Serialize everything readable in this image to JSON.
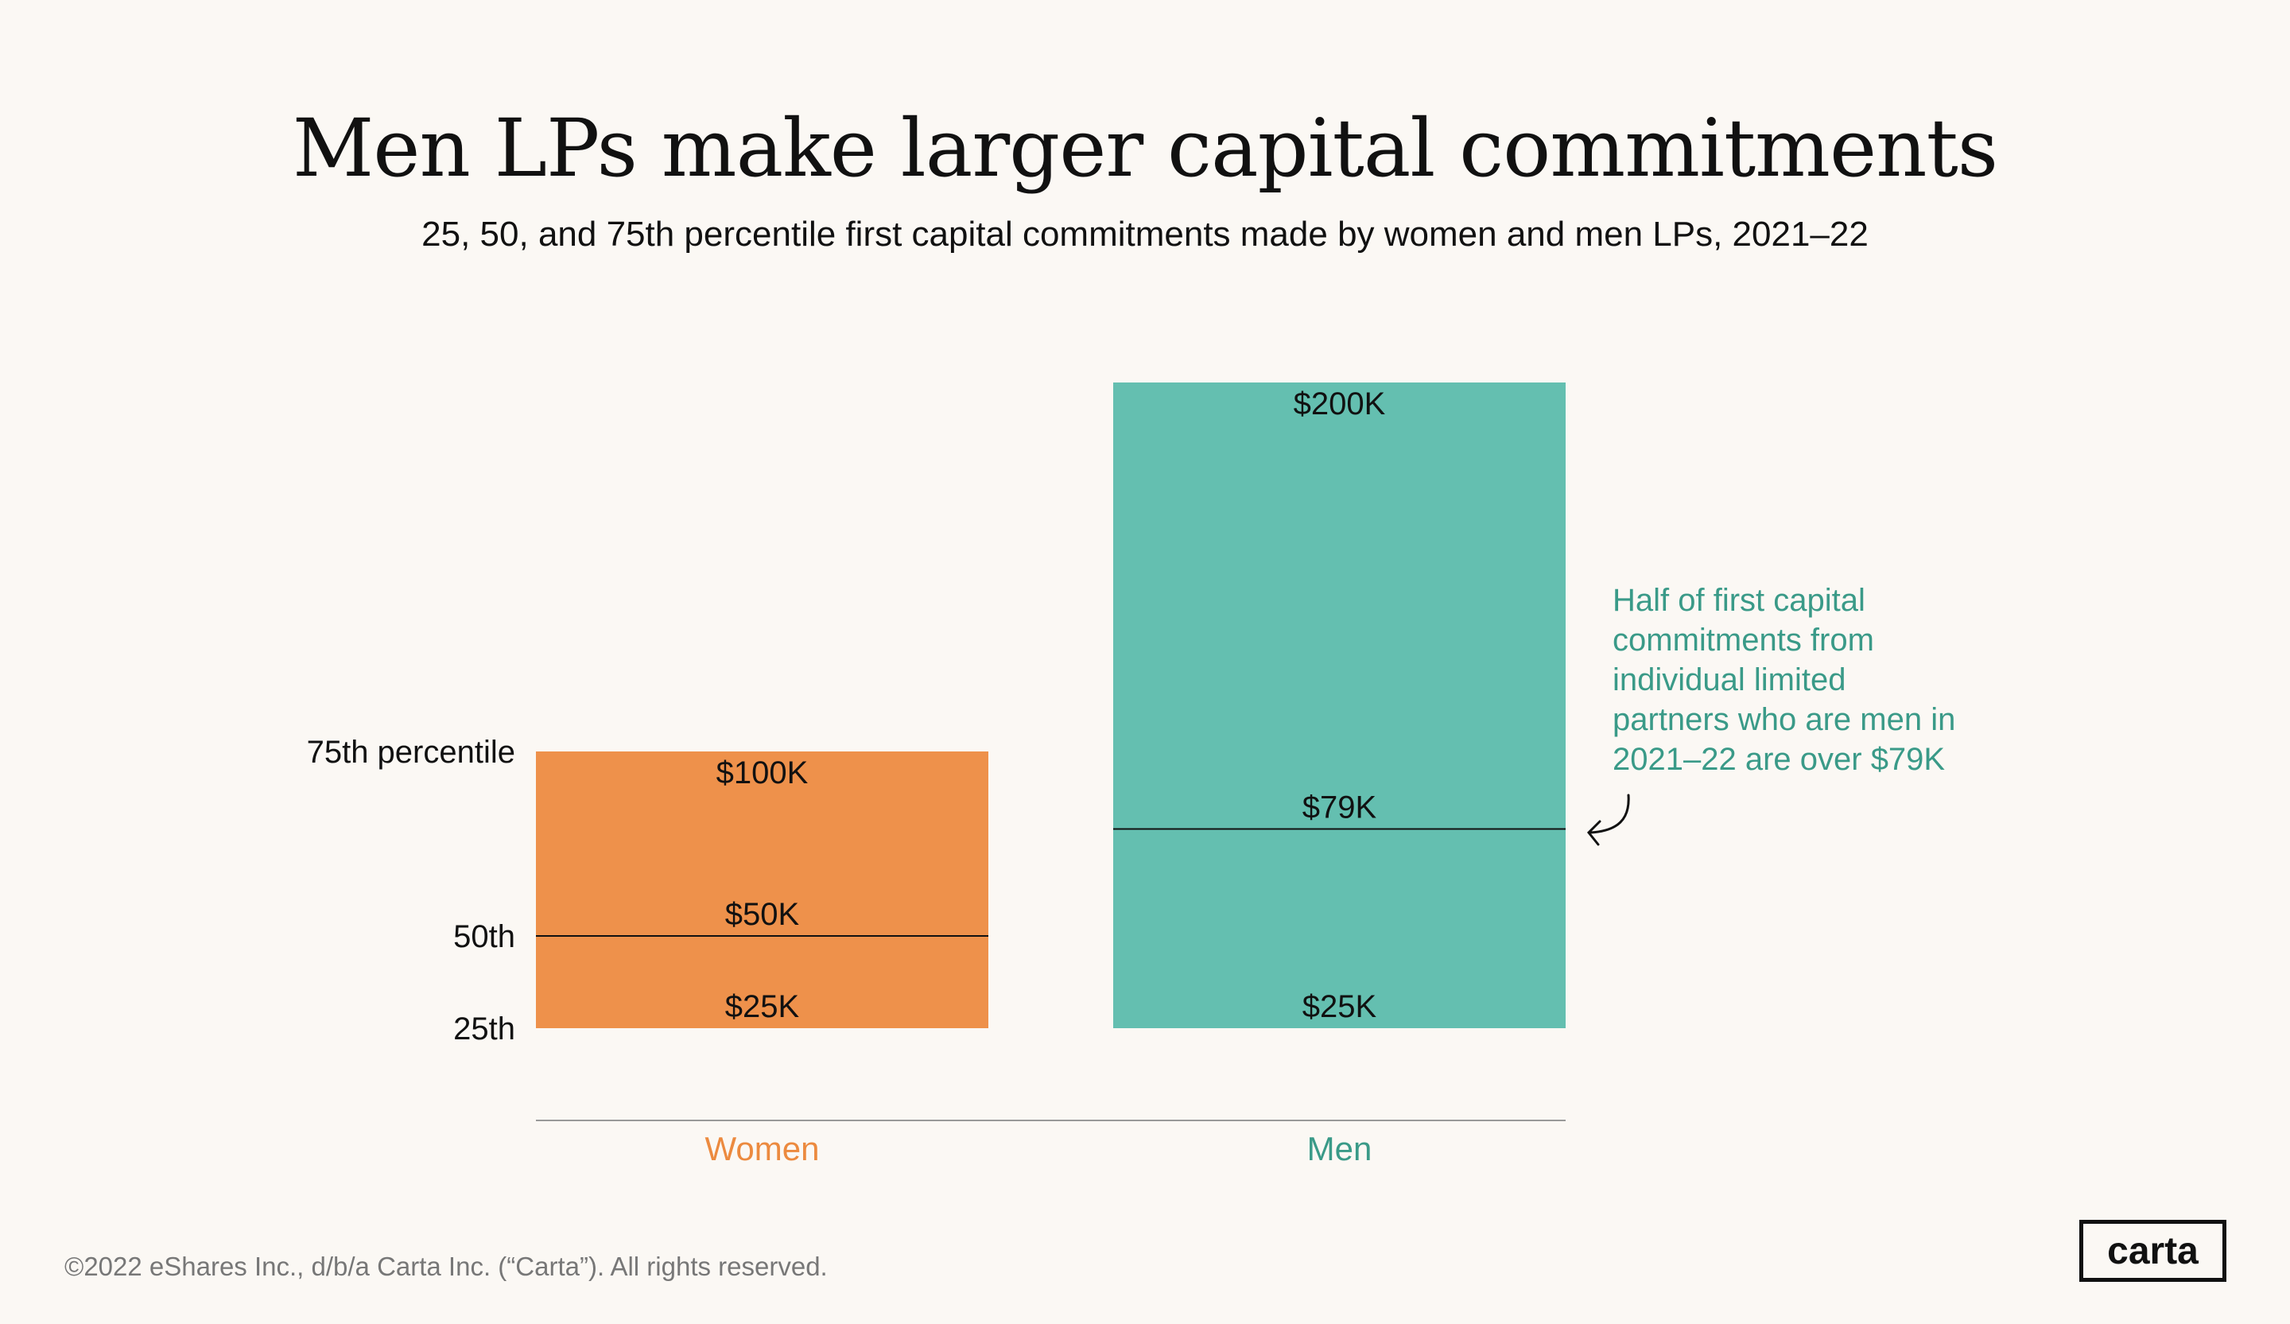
{
  "title": "Men LPs make larger capital commitments",
  "subtitle": "25, 50, and 75th percentile first capital commitments made by women and men LPs, 2021–22",
  "chart_data": {
    "type": "bar",
    "subtype": "floating-range",
    "categories": [
      "Women",
      "Men"
    ],
    "series": [
      {
        "category": "Women",
        "p25": 25,
        "p50": 50,
        "p75": 100,
        "color": "#ee914b",
        "label_color": "#ec8a3f",
        "labels": {
          "p25": "$25K",
          "p50": "$50K",
          "p75": "$100K"
        }
      },
      {
        "category": "Men",
        "p25": 25,
        "p50": 79,
        "p75": 200,
        "color": "#64bfb0",
        "label_color": "#3a9a88",
        "labels": {
          "p25": "$25K",
          "p50": "$79K",
          "p75": "$200K"
        }
      }
    ],
    "unit": "$K",
    "ylim": [
      0,
      200
    ],
    "y_labels": [
      {
        "value": 100,
        "text": "75th percentile"
      },
      {
        "value": 50,
        "text": "50th"
      },
      {
        "value": 25,
        "text": "25th"
      }
    ],
    "grid": false,
    "annotation": "Half of first capital commitments from individual limited partners who are men in 2021–22 are  over $79K",
    "annotation_lines": [
      "Half of first capital",
      "commitments from",
      "individual limited",
      "partners who are men in",
      "2021–22 are  over $79K"
    ]
  },
  "footer": "©2022 eShares Inc., d/b/a Carta Inc. (“Carta”). All rights reserved.",
  "logo": "carta",
  "colors": {
    "background": "#fbf8f4",
    "annotation": "#3a9a88"
  }
}
